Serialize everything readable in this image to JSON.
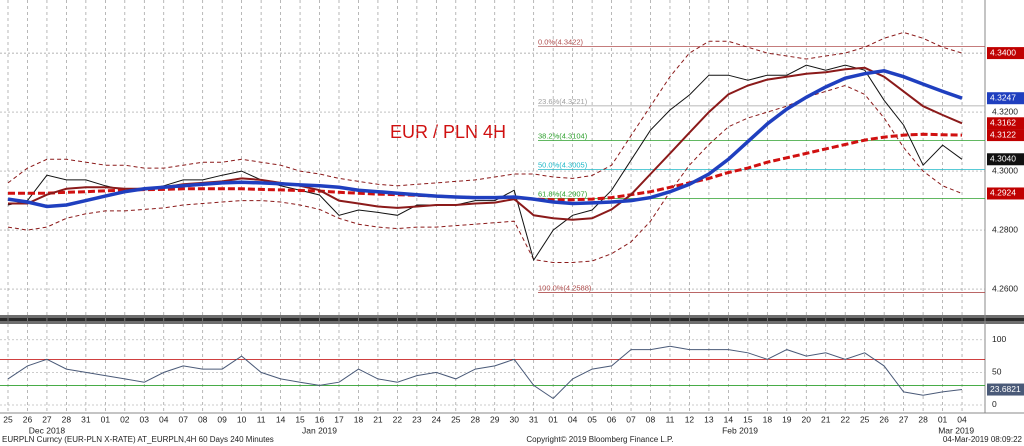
{
  "chart_data": [
    {
      "type": "line",
      "title": "EUR / PLN 4H",
      "categories": [
        "25",
        "26",
        "27",
        "28",
        "31",
        "01",
        "02",
        "03",
        "04",
        "07",
        "08",
        "09",
        "10",
        "11",
        "14",
        "15",
        "16",
        "17",
        "18",
        "21",
        "22",
        "23",
        "24",
        "25",
        "28",
        "29",
        "30",
        "31",
        "01",
        "04",
        "05",
        "06",
        "07",
        "08",
        "11",
        "12",
        "13",
        "14",
        "15",
        "18",
        "19",
        "20",
        "21",
        "22",
        "25",
        "26",
        "27",
        "28",
        "01",
        "04"
      ],
      "month_labels": [
        "Dec 2018",
        "Jan 2019",
        "Feb 2019",
        "Mar 2019"
      ],
      "ylim": [
        4.2512,
        4.358
      ],
      "yticks": [
        {
          "value": 4.26,
          "label": "4.2600"
        },
        {
          "value": 4.28,
          "label": "4.2800"
        },
        {
          "value": 4.3,
          "label": "4.3000"
        },
        {
          "value": 4.32,
          "label": "4.3200"
        },
        {
          "value": 4.34,
          "label": "4.3400"
        }
      ],
      "grid": true,
      "series": [
        {
          "color": "#8b1a1a",
          "style": "dashed",
          "width": 1,
          "values": [
            4.296,
            4.301,
            4.304,
            4.304,
            4.303,
            4.302,
            4.302,
            4.301,
            4.301,
            4.302,
            4.303,
            4.303,
            4.304,
            4.303,
            4.302,
            4.3,
            4.299,
            4.2975,
            4.2965,
            4.2955,
            4.295,
            4.2955,
            4.296,
            4.2965,
            4.297,
            4.298,
            4.299,
            4.299,
            4.298,
            4.2975,
            4.2985,
            4.302,
            4.312,
            4.322,
            4.332,
            4.34,
            4.344,
            4.344,
            4.342,
            4.34,
            4.339,
            4.338,
            4.339,
            4.34,
            4.342,
            4.345,
            4.347,
            4.345,
            4.342,
            4.34
          ]
        },
        {
          "color": "#8b1a1a",
          "style": "dashed",
          "width": 1,
          "values": [
            4.281,
            4.28,
            4.281,
            4.284,
            4.2855,
            4.2865,
            4.2865,
            4.287,
            4.2875,
            4.2885,
            4.289,
            4.2895,
            4.29,
            4.29,
            4.2895,
            4.2885,
            4.287,
            4.284,
            4.282,
            4.281,
            4.2805,
            4.281,
            4.281,
            4.2815,
            4.282,
            4.2825,
            4.283,
            4.27,
            4.269,
            4.269,
            4.2695,
            4.272,
            4.276,
            4.283,
            4.293,
            4.302,
            4.309,
            4.315,
            4.318,
            4.32,
            4.322,
            4.325,
            4.327,
            4.329,
            4.326,
            4.318,
            4.308,
            4.3,
            4.295,
            4.2924
          ]
        },
        {
          "color": "#111111",
          "style": "solid",
          "width": 1,
          "values": [
            4.2885,
            4.29,
            4.2986,
            4.297,
            4.297,
            4.295,
            4.2935,
            4.2935,
            4.295,
            4.297,
            4.297,
            4.2986,
            4.3,
            4.297,
            4.295,
            4.2935,
            4.2919,
            4.285,
            4.2868,
            4.286,
            4.285,
            4.2885,
            4.2885,
            4.2885,
            4.29,
            4.29,
            4.2935,
            4.2698,
            4.28,
            4.285,
            4.2868,
            4.2935,
            4.3037,
            4.3139,
            4.3207,
            4.3258,
            4.3325,
            4.3325,
            4.3308,
            4.3325,
            4.3325,
            4.3359,
            4.3342,
            4.3359,
            4.3342,
            4.324,
            4.3156,
            4.302,
            4.3088,
            4.304
          ]
        },
        {
          "color": "#d01010",
          "style": "dashed",
          "width": 3,
          "values": [
            4.2925,
            4.2925,
            4.2925,
            4.2928,
            4.293,
            4.2933,
            4.2935,
            4.2937,
            4.2938,
            4.294,
            4.294,
            4.294,
            4.294,
            4.2938,
            4.2936,
            4.2934,
            4.2932,
            4.2928,
            4.2925,
            4.2922,
            4.292,
            4.2918,
            4.2915,
            4.2912,
            4.291,
            4.291,
            4.291,
            4.2905,
            4.2903,
            4.2903,
            4.2905,
            4.291,
            4.292,
            4.293,
            4.2945,
            4.296,
            4.2975,
            4.2995,
            4.301,
            4.303,
            4.3045,
            4.306,
            4.3075,
            4.309,
            4.3105,
            4.3115,
            4.3122,
            4.3125,
            4.3123,
            4.3122
          ]
        },
        {
          "color": "#8b1a1a",
          "style": "solid",
          "width": 2,
          "values": [
            4.289,
            4.289,
            4.292,
            4.294,
            4.2945,
            4.2945,
            4.294,
            4.294,
            4.2945,
            4.2955,
            4.296,
            4.2965,
            4.2975,
            4.297,
            4.296,
            4.295,
            4.2935,
            4.29,
            4.289,
            4.288,
            4.2875,
            4.288,
            4.2885,
            4.2885,
            4.289,
            4.2893,
            4.2905,
            4.285,
            4.284,
            4.2835,
            4.284,
            4.287,
            4.292,
            4.299,
            4.306,
            4.313,
            4.32,
            4.326,
            4.329,
            4.331,
            4.332,
            4.333,
            4.3335,
            4.3345,
            4.335,
            4.332,
            4.327,
            4.322,
            4.319,
            4.3162
          ]
        },
        {
          "color": "#1f3fbf",
          "style": "solid",
          "width": 3.5,
          "values": [
            4.2905,
            4.2895,
            4.288,
            4.2885,
            4.29,
            4.2915,
            4.293,
            4.294,
            4.2945,
            4.295,
            4.2955,
            4.296,
            4.2962,
            4.296,
            4.2957,
            4.2953,
            4.295,
            4.2945,
            4.2935,
            4.293,
            4.2925,
            4.292,
            4.2915,
            4.2912,
            4.291,
            4.291,
            4.2912,
            4.2905,
            4.2895,
            4.289,
            4.2892,
            4.2895,
            4.29,
            4.291,
            4.293,
            4.2955,
            4.299,
            4.304,
            4.31,
            4.316,
            4.321,
            4.325,
            4.3285,
            4.3315,
            4.333,
            4.334,
            4.332,
            4.3295,
            4.327,
            4.3247
          ]
        }
      ],
      "fib_levels": [
        {
          "value": 4.3422,
          "label": "0.0%(4.3422)",
          "color": "#b05050"
        },
        {
          "value": 4.3221,
          "label": "23.6%(4.3221)",
          "color": "#a0a0a0"
        },
        {
          "value": 4.3104,
          "label": "38.2%(4.3104)",
          "color": "#2ea02e"
        },
        {
          "value": 4.3005,
          "label": "50.0%(4.3005)",
          "color": "#20b8c8"
        },
        {
          "value": 4.2907,
          "label": "61.8%(4.2907)",
          "color": "#2ea02e"
        },
        {
          "value": 4.2588,
          "label": "100.0%(4.2588)",
          "color": "#b05050"
        }
      ],
      "price_tags": [
        {
          "value": 4.34,
          "label": "4.3400",
          "color": "#c00000"
        },
        {
          "value": 4.3247,
          "label": "4.3247",
          "color": "#1f3fbf"
        },
        {
          "value": 4.3162,
          "label": "4.3162",
          "color": "#c00000"
        },
        {
          "value": 4.3122,
          "label": "4.3122",
          "color": "#c00000"
        },
        {
          "value": 4.304,
          "label": "4.3040",
          "color": "#111111"
        },
        {
          "value": 4.2924,
          "label": "4.2924",
          "color": "#c00000"
        }
      ]
    },
    {
      "type": "line",
      "ylim": [
        -10,
        115
      ],
      "yticks": [
        0,
        50,
        100
      ],
      "levels": [
        {
          "value": 70,
          "color": "#c00000"
        },
        {
          "value": 30,
          "color": "#2ea02e"
        }
      ],
      "series": [
        {
          "color": "#4a5a78",
          "values": [
            40,
            60,
            70,
            55,
            50,
            45,
            40,
            35,
            50,
            60,
            55,
            55,
            75,
            50,
            40,
            35,
            30,
            35,
            55,
            40,
            35,
            45,
            50,
            40,
            55,
            60,
            70,
            30,
            10,
            40,
            55,
            60,
            85,
            85,
            90,
            85,
            85,
            85,
            80,
            70,
            85,
            75,
            80,
            70,
            80,
            60,
            20,
            15,
            20,
            23.6821
          ]
        }
      ],
      "value_tag": {
        "value": 23.6821,
        "label": "23.6821",
        "color": "#4a5a78"
      }
    }
  ],
  "footer": {
    "left": "EURPLN Curncy (EUR-PLN X-RATE) AT_EURPLN,4H 60 Days 240 Minutes",
    "center": "Copyright© 2019 Bloomberg Finance L.P.",
    "right": "04-Mar-2019 08:09:22"
  }
}
